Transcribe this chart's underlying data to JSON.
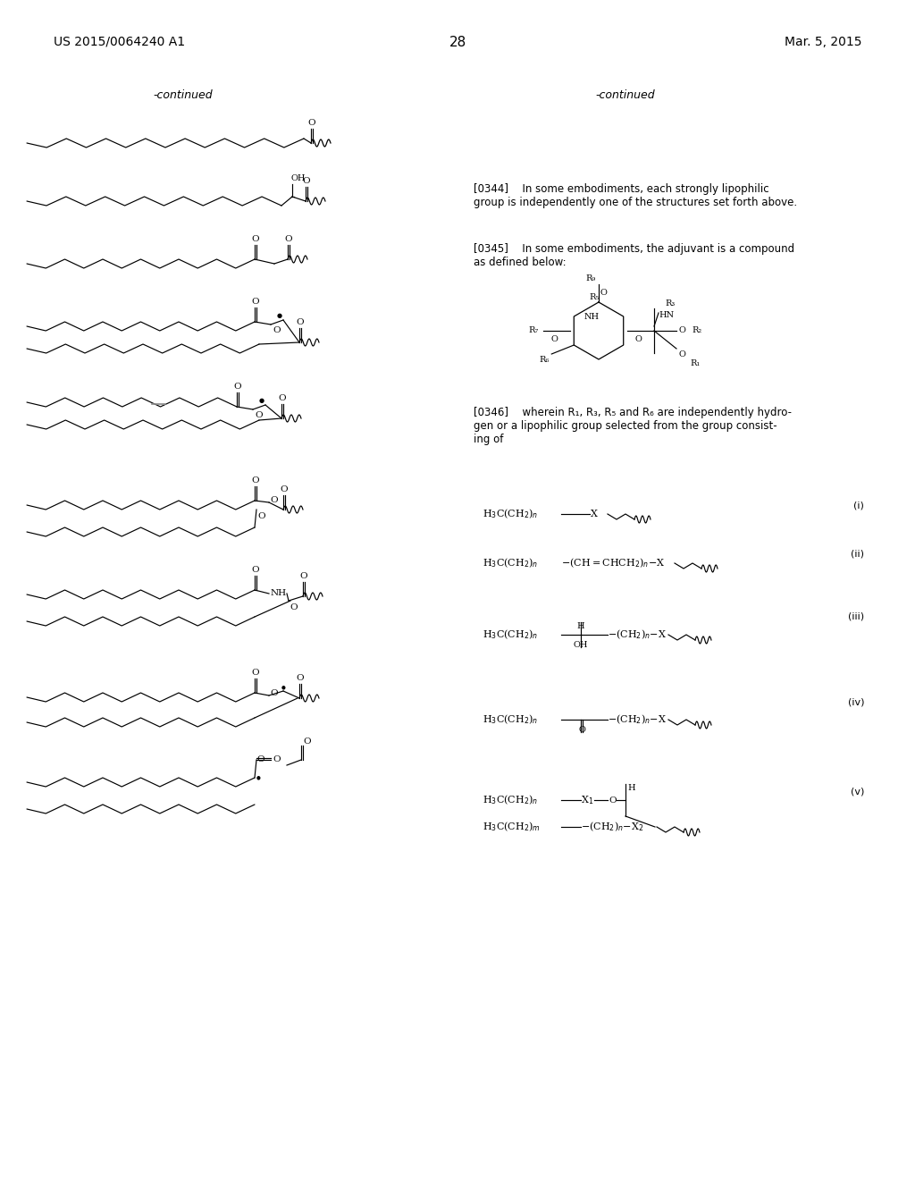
{
  "page_number": "28",
  "patent_number": "US 2015/0064240 A1",
  "patent_date": "Mar. 5, 2015",
  "background_color": "#ffffff",
  "text_color": "#000000",
  "font_size_header": 11,
  "font_size_body": 8.5,
  "font_size_small": 7.5,
  "continued_left": "-continued",
  "continued_right": "-continued",
  "paragraph_344": "[0344]  In some embodiments, each strongly lipophilic\ngroup is independently one of the structures set forth above.",
  "paragraph_345": "[0345]  In some embodiments, the adjuvant is a compound\nas defined below:",
  "paragraph_346": "[0346]  wherein R₁, R₃, R₅ and R₆ are independently hydro-\ngen or a lipophilic group selected from the group consist-\ning of",
  "roman_i": "(i)",
  "roman_ii": "(ii)",
  "roman_iii": "(iii)",
  "roman_iv": "(iv)",
  "roman_v": "(v)"
}
